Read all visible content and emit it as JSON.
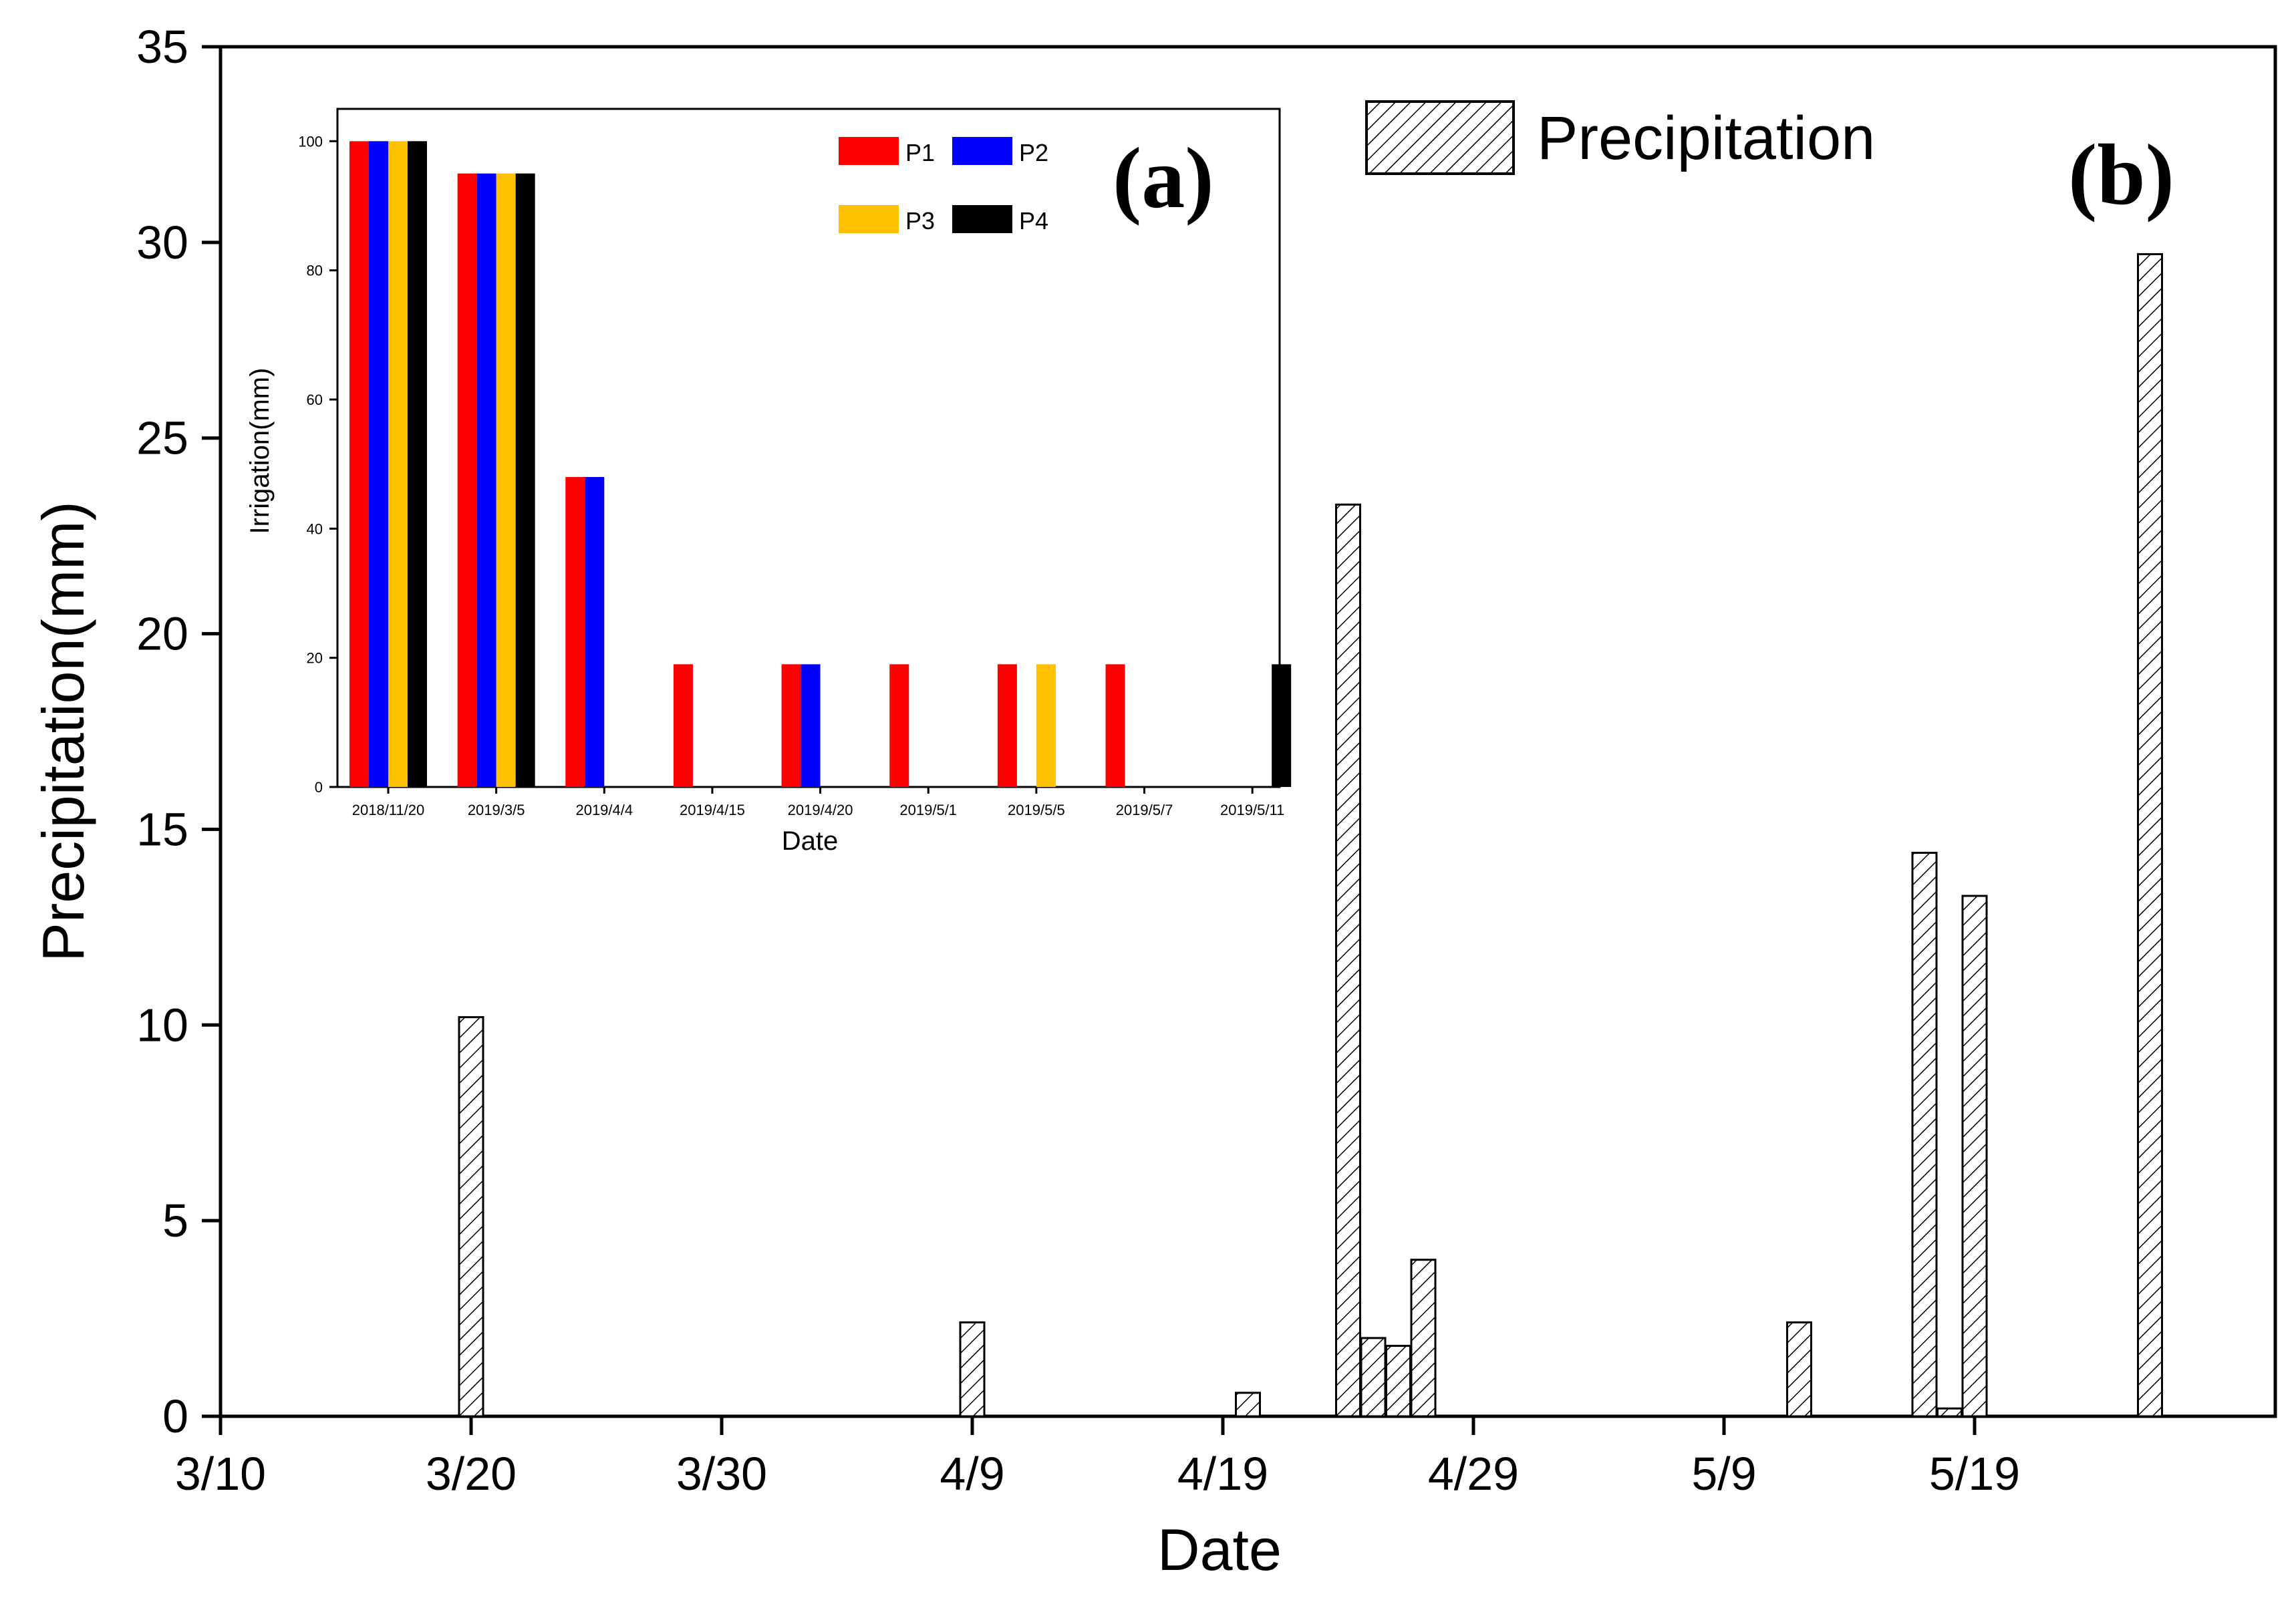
{
  "chart_data": [
    {
      "panel": "(b)",
      "type": "bar",
      "xlabel": "Date",
      "ylabel": "Precipitation(mm)",
      "ylim": [
        0,
        35
      ],
      "yticks": [
        0,
        5,
        10,
        15,
        20,
        25,
        30,
        35
      ],
      "xlim": [
        "3/10",
        "5/31"
      ],
      "xtick_labels": [
        "3/10",
        "3/20",
        "3/30",
        "4/9",
        "4/19",
        "4/29",
        "5/9",
        "5/19"
      ],
      "legend": {
        "position": "top-right",
        "entries": [
          "Precipitation"
        ]
      },
      "series": [
        {
          "name": "Precipitation",
          "hatch": "diagonal",
          "points": [
            {
              "date": "3/20",
              "value": 10.2
            },
            {
              "date": "4/9",
              "value": 2.4
            },
            {
              "date": "4/20",
              "value": 0.6
            },
            {
              "date": "4/24",
              "value": 23.3
            },
            {
              "date": "4/25",
              "value": 2.0
            },
            {
              "date": "4/26",
              "value": 1.8
            },
            {
              "date": "4/27",
              "value": 4.0
            },
            {
              "date": "5/12",
              "value": 2.4
            },
            {
              "date": "5/17",
              "value": 14.4
            },
            {
              "date": "5/18",
              "value": 0.2
            },
            {
              "date": "5/19",
              "value": 13.3
            },
            {
              "date": "5/26",
              "value": 29.7
            }
          ]
        }
      ]
    },
    {
      "panel": "(a)",
      "type": "bar",
      "xlabel": "Date",
      "ylabel": "Irrigation(mm)",
      "ylim": [
        0,
        105
      ],
      "yticks": [
        0,
        20,
        40,
        60,
        80,
        100
      ],
      "categories": [
        "2018/11/20",
        "2019/3/5",
        "2019/4/4",
        "2019/4/15",
        "2019/4/20",
        "2019/5/1",
        "2019/5/5",
        "2019/5/7",
        "2019/5/11"
      ],
      "legend": {
        "position": "top-right",
        "entries": [
          "P1",
          "P2",
          "P3",
          "P4"
        ]
      },
      "series": [
        {
          "name": "P1",
          "color": "#ff0000",
          "values": [
            100,
            95,
            48,
            19,
            19,
            19,
            19,
            19,
            0
          ]
        },
        {
          "name": "P2",
          "color": "#0000ff",
          "values": [
            100,
            95,
            48,
            0,
            19,
            0,
            0,
            0,
            0
          ]
        },
        {
          "name": "P3",
          "color": "#ffc000",
          "values": [
            100,
            95,
            0,
            0,
            0,
            0,
            19,
            0,
            0
          ]
        },
        {
          "name": "P4",
          "color": "#000000",
          "values": [
            100,
            95,
            0,
            0,
            0,
            0,
            0,
            0,
            19
          ]
        }
      ]
    }
  ]
}
